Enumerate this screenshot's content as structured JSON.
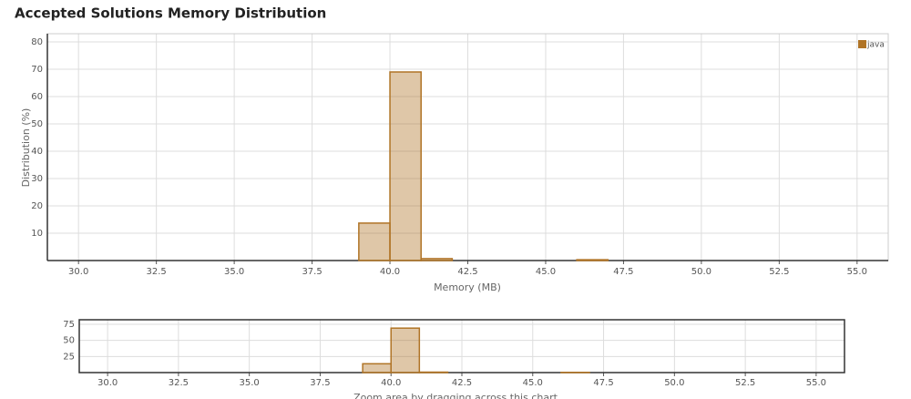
{
  "chart_data": [
    {
      "type": "histogram",
      "title": "Accepted Solutions Memory Distribution",
      "x_label": "Memory (MB)",
      "y_label": "Distribution (%)",
      "bins": [
        39,
        40,
        41,
        42,
        43,
        44,
        45,
        46,
        47
      ],
      "series": [
        {
          "name": "java",
          "color": "#b07426",
          "values": [
            13.7,
            69,
            0.7,
            0,
            0,
            0,
            0,
            0.3
          ]
        }
      ],
      "xlim": [
        29,
        56
      ],
      "ylim": [
        0,
        83
      ],
      "xticks": [
        {
          "value": 30,
          "label": "30.0"
        },
        32.5,
        {
          "value": 35,
          "label": "35.0"
        },
        37.5,
        {
          "value": 40,
          "label": "40.0"
        },
        42.5,
        {
          "value": 45,
          "label": "45.0"
        },
        47.5,
        {
          "value": 50,
          "label": "50.0"
        },
        52.5,
        {
          "value": 55,
          "label": "55.0"
        }
      ],
      "yticks": [
        10,
        20,
        30,
        40,
        50,
        60,
        70,
        80
      ],
      "grid": true,
      "legend": "top-right"
    },
    {
      "type": "histogram",
      "bins": [
        39,
        40,
        41,
        42,
        43,
        44,
        45,
        46,
        47
      ],
      "series": [
        {
          "color": "#b07426",
          "values": [
            13.7,
            69,
            0.7,
            0,
            0,
            0,
            0,
            0.3
          ]
        }
      ],
      "xlim": [
        29,
        56
      ],
      "ylim": [
        0,
        82
      ],
      "xticks": [
        {
          "value": 30,
          "label": "30.0"
        },
        32.5,
        {
          "value": 35,
          "label": "35.0"
        },
        37.5,
        {
          "value": 40,
          "label": "40.0"
        },
        42.5,
        {
          "value": 45,
          "label": "45.0"
        },
        47.5,
        {
          "value": 50,
          "label": "50.0"
        },
        52.5,
        {
          "value": 55,
          "label": "55.0"
        }
      ],
      "yticks": [
        25,
        50,
        75
      ],
      "grid": true,
      "caption": "Zoom area by dragging across this chart"
    }
  ]
}
